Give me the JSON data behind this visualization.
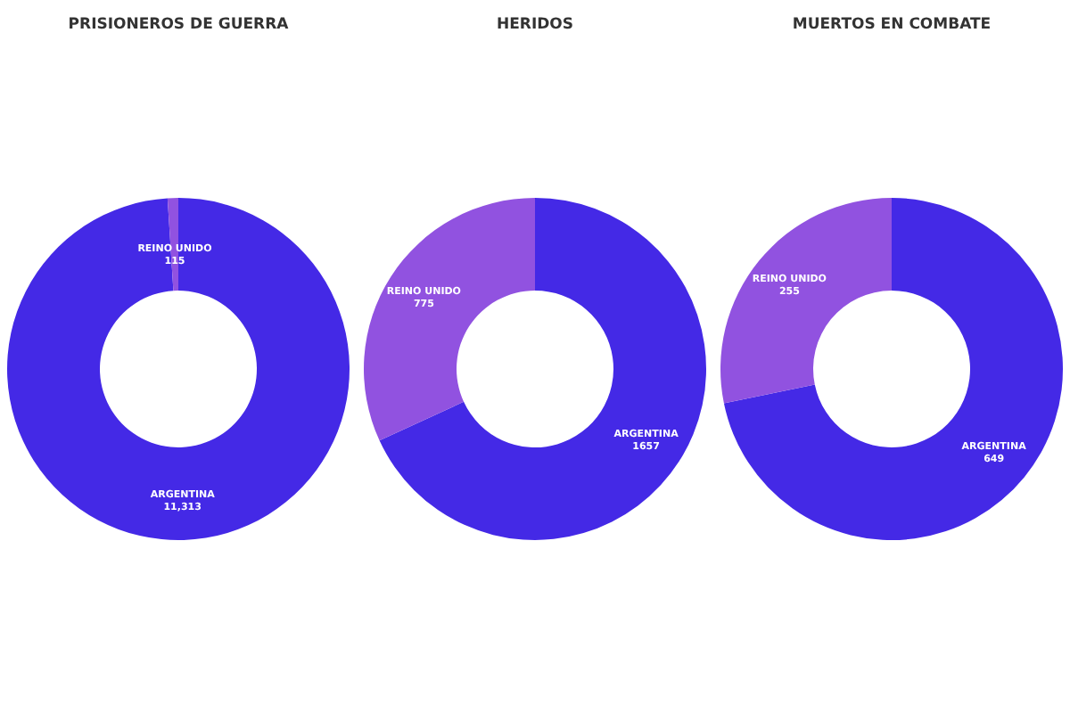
{
  "chart_data": [
    {
      "type": "donut",
      "title": "PRISIONEROS DE GUERRA",
      "categories": [
        "ARGENTINA",
        "REINO UNIDO"
      ],
      "values": [
        11313,
        115
      ],
      "value_labels": [
        "11,313",
        "115"
      ],
      "colors": [
        "#4429e6",
        "#9152e0"
      ]
    },
    {
      "type": "donut",
      "title": "HERIDOS",
      "categories": [
        "ARGENTINA",
        "REINO UNIDO"
      ],
      "values": [
        1657,
        775
      ],
      "value_labels": [
        "1657",
        "775"
      ],
      "colors": [
        "#4429e6",
        "#9152e0"
      ]
    },
    {
      "type": "donut",
      "title": "MUERTOS EN COMBATE",
      "categories": [
        "ARGENTINA",
        "REINO UNIDO"
      ],
      "values": [
        649,
        255
      ],
      "value_labels": [
        "649",
        "255"
      ],
      "colors": [
        "#4429e6",
        "#9152e0"
      ]
    }
  ]
}
